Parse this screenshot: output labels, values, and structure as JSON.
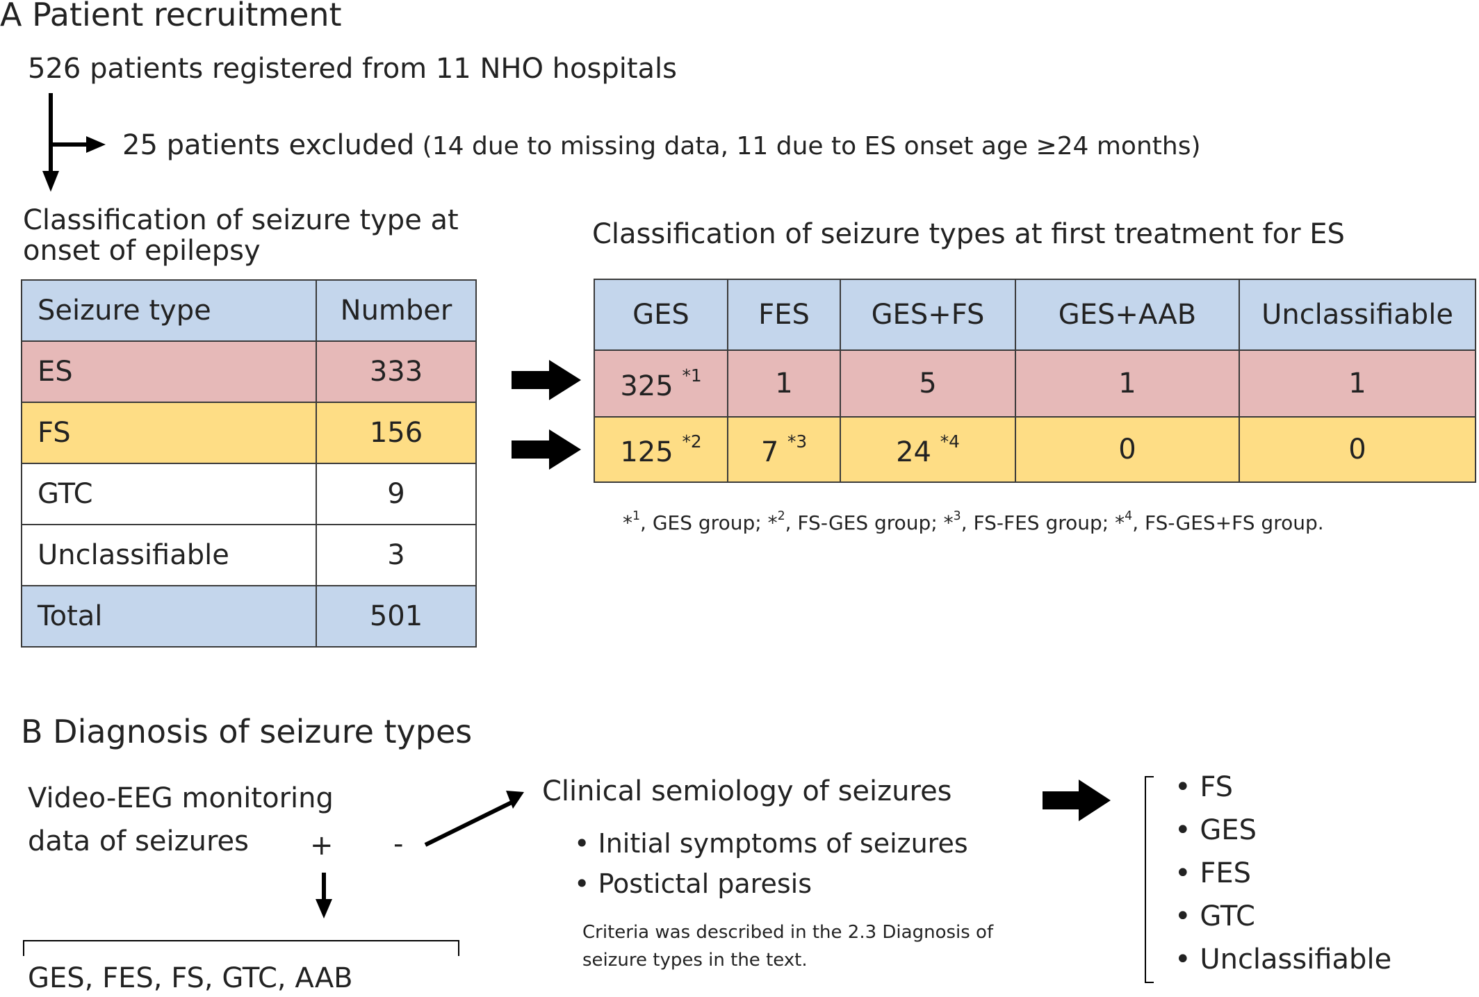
{
  "section_a": {
    "title": "A  Patient recruitment",
    "registered": "526 patients registered  from 11 NHO hospitals",
    "excluded_main": "25 patients  excluded",
    "excluded_detail": " (14 due to missing data, 11 due to ES onset age ≥24 months)",
    "left_heading_1": "Classification of seizure type at",
    "left_heading_2": "onset of epilepsy",
    "right_heading": "Classification of seizure types at first treatment for ES",
    "onset_table": {
      "headers": [
        "Seizure type",
        "Number"
      ],
      "rows": [
        {
          "type": "ES",
          "number": "333"
        },
        {
          "type": "FS",
          "number": "156"
        },
        {
          "type": "GTC",
          "number": "9"
        },
        {
          "type": "Unclassifiable",
          "number": "3"
        },
        {
          "type": "Total",
          "number": "501"
        }
      ]
    },
    "treatment_table": {
      "headers": [
        "GES",
        "FES",
        "GES+FS",
        "GES+AAB",
        "Unclassifiable"
      ],
      "rows": [
        [
          {
            "value": "325",
            "note": "*1"
          },
          {
            "value": "1",
            "note": ""
          },
          {
            "value": "5",
            "note": ""
          },
          {
            "value": "1",
            "note": ""
          },
          {
            "value": "1",
            "note": ""
          }
        ],
        [
          {
            "value": "125",
            "note": "*2"
          },
          {
            "value": "7",
            "note": "*3"
          },
          {
            "value": "24",
            "note": "*4"
          },
          {
            "value": "0",
            "note": ""
          },
          {
            "value": "0",
            "note": ""
          }
        ]
      ]
    },
    "footnotes": [
      {
        "mark": "*",
        "sup": "1",
        "text": ", GES group;  "
      },
      {
        "mark": "*",
        "sup": "2",
        "text": ", FS-GES group;  "
      },
      {
        "mark": "*",
        "sup": "3",
        "text": ", FS-FES group;  "
      },
      {
        "mark": "*",
        "sup": "4",
        "text": ", FS-GES+FS group."
      }
    ]
  },
  "section_b": {
    "title": "B  Diagnosis of seizure types",
    "video_eeg_1": "Video-EEG  monitoring",
    "video_eeg_2": "data of seizures",
    "plus": "+",
    "minus": "-",
    "eeg_result": "GES, FES, FS, GTC, AAB",
    "semiology_title": "Clinical semiology of seizures",
    "semiology_items": [
      "Initial symptoms of seizures",
      "Postictal paresis"
    ],
    "criteria_1": "Criteria was described in the 2.3 Diagnosis of",
    "criteria_2": "seizure types  in the text.",
    "result_items": [
      "FS",
      "GES",
      "FES",
      "GTC",
      "Unclassifiable"
    ]
  }
}
